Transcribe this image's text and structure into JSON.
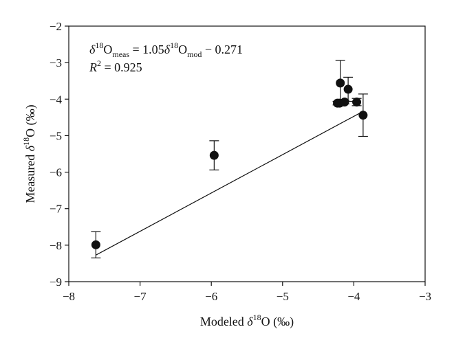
{
  "chart_data": {
    "type": "scatter",
    "title": "",
    "xlabel": {
      "prefix": "Modeled ",
      "delta": "δ",
      "sup": "18",
      "suffix": "O (‰)"
    },
    "ylabel": {
      "prefix": "Measured ",
      "delta": "δ",
      "sup": "18",
      "suffix": "O (‰)"
    },
    "xlim": [
      -8,
      -3
    ],
    "ylim": [
      -9,
      -2
    ],
    "xticks": [
      -8,
      -7,
      -6,
      -5,
      -4,
      -3
    ],
    "yticks": [
      -9,
      -8,
      -7,
      -6,
      -5,
      -4,
      -3,
      -2
    ],
    "xtick_labels": [
      "−8",
      "−7",
      "−6",
      "−5",
      "−4",
      "−3"
    ],
    "ytick_labels": [
      "−9",
      "−8",
      "−7",
      "−6",
      "−5",
      "−4",
      "−3",
      "−2"
    ],
    "grid": false,
    "points": [
      {
        "x": -7.62,
        "y": -7.99,
        "err_low": 0.36,
        "err_high": 0.36
      },
      {
        "x": -5.96,
        "y": -5.54,
        "err_low": 0.4,
        "err_high": 0.4
      },
      {
        "x": -4.23,
        "y": -4.11,
        "err_low": 0.05,
        "err_high": 0.05
      },
      {
        "x": -4.2,
        "y": -4.11,
        "err_low": 0.05,
        "err_high": 0.05
      },
      {
        "x": -4.19,
        "y": -3.56,
        "err_low": 0.62,
        "err_high": 0.62
      },
      {
        "x": -4.13,
        "y": -4.08,
        "err_low": 0.05,
        "err_high": 0.05
      },
      {
        "x": -4.08,
        "y": -3.73,
        "err_low": 0.33,
        "err_high": 0.33
      },
      {
        "x": -3.96,
        "y": -4.08,
        "err_low": 0.1,
        "err_high": 0.1
      },
      {
        "x": -3.87,
        "y": -4.44,
        "err_low": 0.58,
        "err_high": 0.58
      }
    ],
    "fit": {
      "slope": 1.05,
      "intercept": -0.271,
      "x_range": [
        -7.62,
        -3.87
      ]
    },
    "annotations": {
      "equation": {
        "lhs_delta": "δ",
        "lhs_sup": "18",
        "lhs_O": "O",
        "lhs_sub": "meas",
        "eq": " = 1.05",
        "rhs_delta": "δ",
        "rhs_sup": "18",
        "rhs_O": "O",
        "rhs_sub": "mod",
        "tail": " − 0.271"
      },
      "r2": {
        "R": "R",
        "sup": "2",
        "tail": " = 0.925"
      }
    }
  }
}
